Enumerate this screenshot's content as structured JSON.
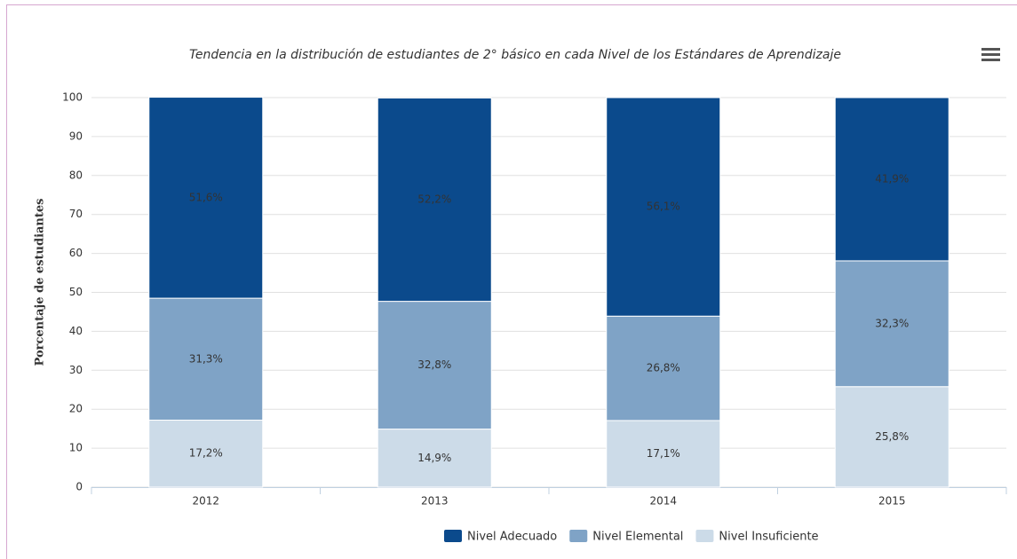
{
  "chart_data": {
    "type": "stacked-bar",
    "title": "Tendencia en la distribución de estudiantes de 2° básico en cada Nivel de los Estándares de Aprendizaje",
    "ylabel": "Porcentaje de estudiantes",
    "categories": [
      "2012",
      "2013",
      "2014",
      "2015"
    ],
    "series": [
      {
        "name": "Nivel Adecuado",
        "color": "#0b4a8c",
        "values": [
          51.6,
          52.2,
          56.1,
          41.9
        ],
        "value_labels": [
          "51,6%",
          "52,2%",
          "56,1%",
          "41,9%"
        ]
      },
      {
        "name": "Nivel Elemental",
        "color": "#7fa3c6",
        "values": [
          31.3,
          32.8,
          26.8,
          32.3
        ],
        "value_labels": [
          "31,3%",
          "32,8%",
          "26,8%",
          "32,3%"
        ]
      },
      {
        "name": "Nivel Insuficiente",
        "color": "#ccdbe8",
        "values": [
          17.2,
          14.9,
          17.1,
          25.8
        ],
        "value_labels": [
          "17,2%",
          "14,9%",
          "17,1%",
          "25,8%"
        ]
      }
    ],
    "ylim": [
      0,
      100
    ],
    "yticks": [
      0,
      10,
      20,
      30,
      40,
      50,
      60,
      70,
      80,
      90,
      100
    ],
    "grid": true,
    "legend": "bottom"
  }
}
